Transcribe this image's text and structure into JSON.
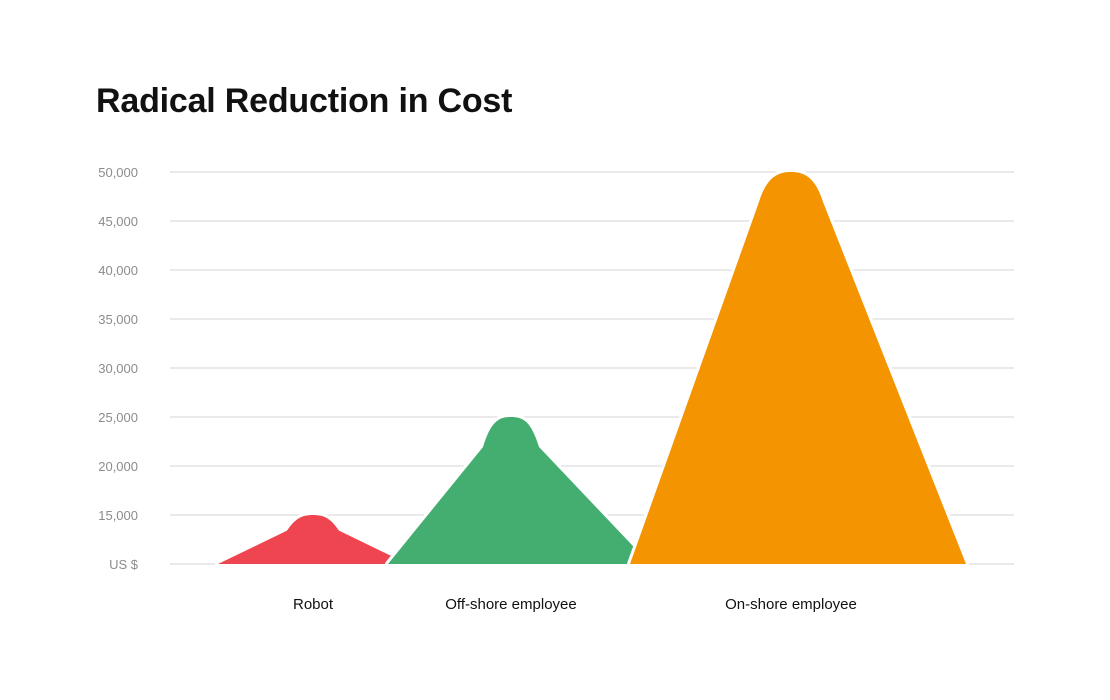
{
  "title": "Radical Reduction in Cost",
  "chart_data": {
    "type": "area",
    "title": "Radical Reduction in Cost",
    "categories": [
      "Robot",
      "Off-shore employee",
      "On-shore employee"
    ],
    "values": [
      15000,
      25000,
      50000
    ],
    "colors": [
      "#ef4550",
      "#43ae70",
      "#f39400"
    ],
    "yticks": [
      {
        "value": 10000,
        "label": "US $"
      },
      {
        "value": 15000,
        "label": "15,000"
      },
      {
        "value": 20000,
        "label": "20,000"
      },
      {
        "value": 25000,
        "label": "25,000"
      },
      {
        "value": 30000,
        "label": "30,000"
      },
      {
        "value": 35000,
        "label": "35,000"
      },
      {
        "value": 40000,
        "label": "40,000"
      },
      {
        "value": 45000,
        "label": "45,000"
      },
      {
        "value": 50000,
        "label": "50,000"
      }
    ],
    "ylim": [
      10000,
      50000
    ],
    "grid": true,
    "xlabel": "",
    "ylabel": ""
  }
}
